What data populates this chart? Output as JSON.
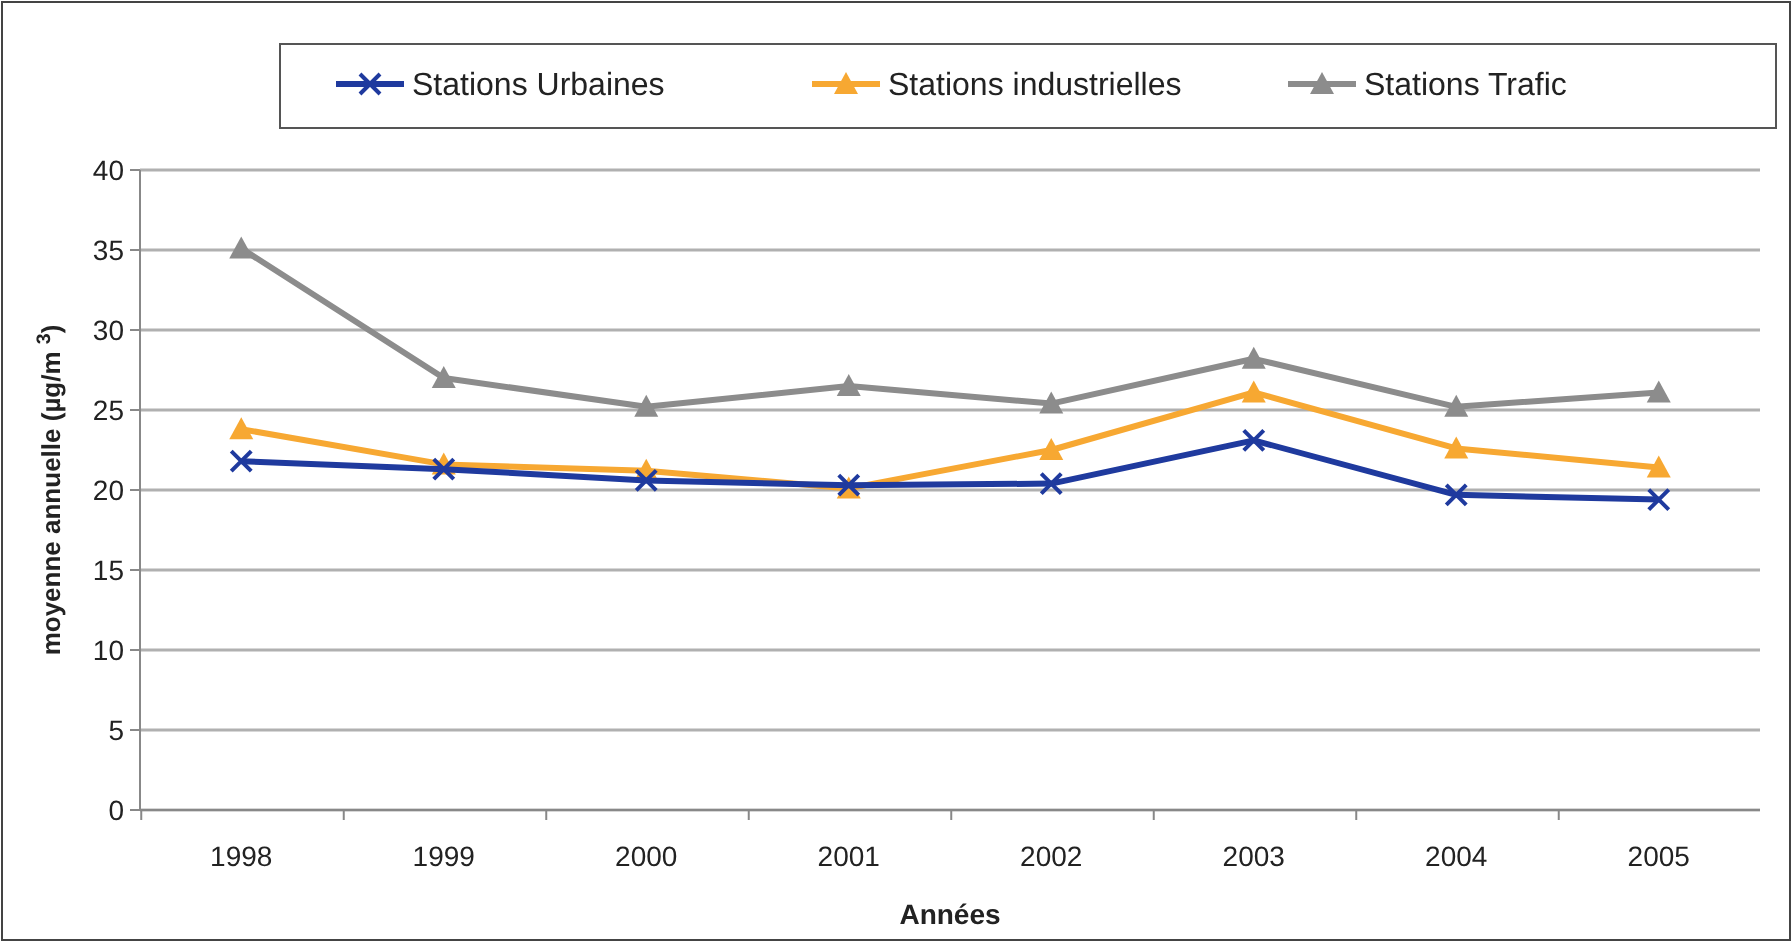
{
  "chart_data": {
    "type": "line",
    "xlabel": "Années",
    "ylabel": "moyenne annuelle (µg/m $^{3}$)",
    "categories": [
      "1998",
      "1999",
      "2000",
      "2001",
      "2002",
      "2003",
      "2004",
      "2005"
    ],
    "series": [
      {
        "name": "Stations Urbaines",
        "color": "#1f3a9e",
        "marker": "cross",
        "values": [
          21.8,
          21.3,
          20.6,
          20.3,
          20.4,
          23.1,
          19.7,
          19.4
        ]
      },
      {
        "name": "Stations industrielles",
        "color": "#f7a832",
        "marker": "triangle",
        "values": [
          23.8,
          21.6,
          21.2,
          20.1,
          22.5,
          26.1,
          22.6,
          21.4
        ]
      },
      {
        "name": "Stations Trafic",
        "color": "#8c8c8c",
        "marker": "triangle",
        "values": [
          35.1,
          27.0,
          25.2,
          26.5,
          25.4,
          28.2,
          25.2,
          26.1
        ]
      }
    ],
    "ylim": [
      0,
      40
    ],
    "yticks": [
      0,
      5,
      10,
      15,
      20,
      25,
      30,
      35,
      40
    ],
    "grid": "y",
    "legend": "top",
    "line_style": "solid"
  }
}
